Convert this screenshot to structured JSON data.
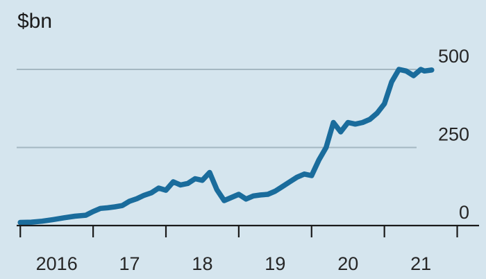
{
  "chart_data": {
    "type": "line",
    "unit_label": "$bn",
    "y_ticks": [
      0,
      250,
      500
    ],
    "x_tick_labels": [
      "2016",
      "17",
      "18",
      "19",
      "20",
      "21"
    ],
    "ylim": [
      0,
      500
    ],
    "xlim": [
      2015.95,
      2022.3
    ],
    "grid": true,
    "series": [
      {
        "color": "#1a6c9c",
        "x": [
          2016.0,
          2016.15,
          2016.3,
          2016.45,
          2016.6,
          2016.75,
          2016.9,
          2017.0,
          2017.1,
          2017.2,
          2017.3,
          2017.4,
          2017.5,
          2017.6,
          2017.7,
          2017.8,
          2017.9,
          2018.0,
          2018.1,
          2018.2,
          2018.3,
          2018.4,
          2018.5,
          2018.6,
          2018.7,
          2018.8,
          2018.9,
          2019.0,
          2019.1,
          2019.2,
          2019.3,
          2019.4,
          2019.5,
          2019.6,
          2019.7,
          2019.8,
          2019.9,
          2020.0,
          2020.1,
          2020.2,
          2020.3,
          2020.4,
          2020.5,
          2020.6,
          2020.7,
          2020.8,
          2020.9,
          2021.0,
          2021.1,
          2021.2,
          2021.3,
          2021.4,
          2021.5,
          2021.55,
          2021.65
        ],
        "values": [
          10,
          11,
          14,
          19,
          25,
          30,
          33,
          45,
          55,
          57,
          60,
          64,
          78,
          86,
          97,
          105,
          120,
          113,
          140,
          130,
          135,
          150,
          145,
          170,
          115,
          80,
          90,
          100,
          85,
          95,
          98,
          100,
          110,
          125,
          140,
          155,
          165,
          160,
          210,
          250,
          330,
          300,
          330,
          325,
          330,
          340,
          360,
          390,
          460,
          500,
          495,
          480,
          500,
          495,
          498
        ]
      }
    ]
  }
}
